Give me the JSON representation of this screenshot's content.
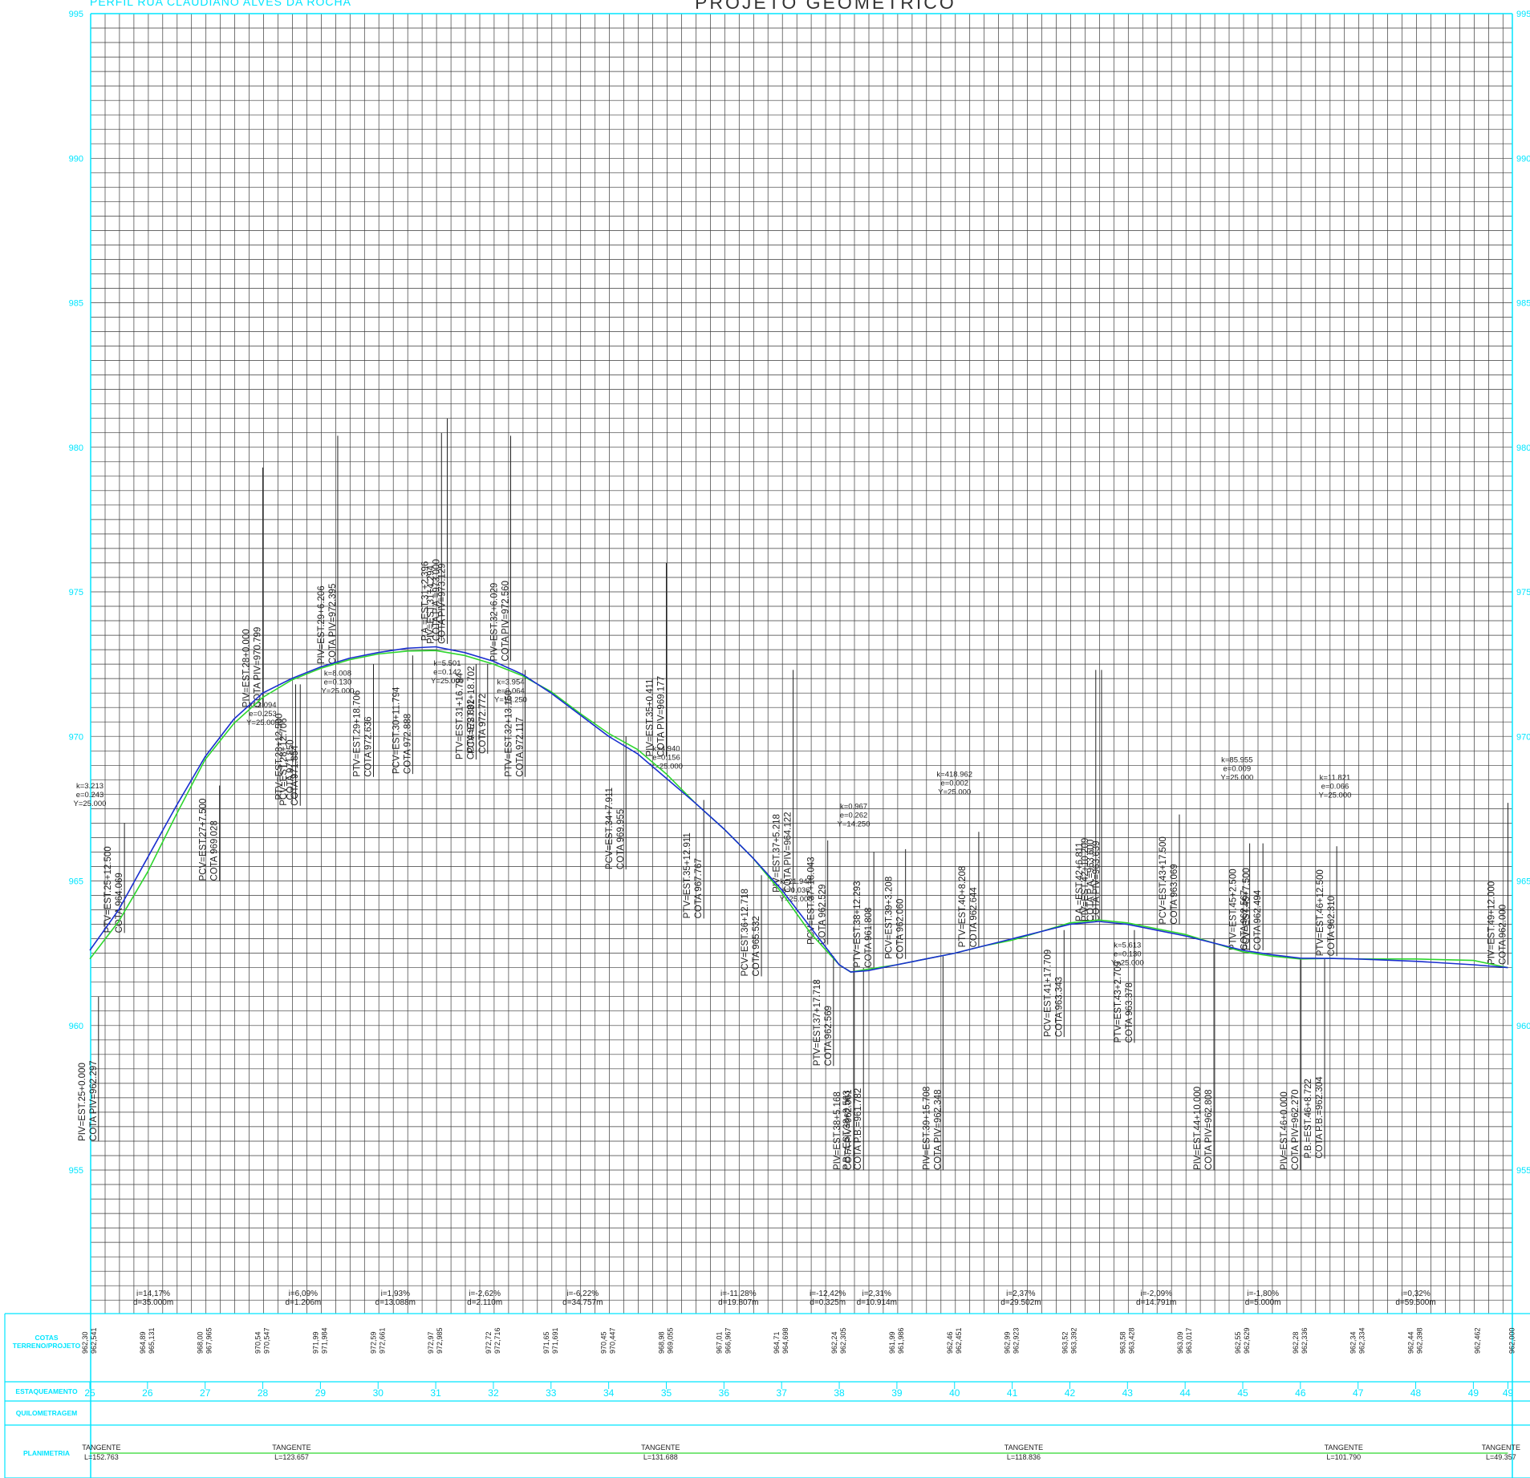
{
  "header": {
    "profile_name": "PERFIL RUA CLAUDIANO ALVES DA ROCHA",
    "project_title": "PROJETO GEOMETRICO"
  },
  "colors": {
    "cyan": "#00e5ff",
    "grid": "#3a3a3a",
    "project_line": "#1a2fd0",
    "terrain_line": "#2ed62e",
    "annotation": "#222222"
  },
  "chart_data": {
    "type": "line",
    "title": "PROJETO GEOMETRICO",
    "xlim": [
      25,
      49.65
    ],
    "ylim": [
      950,
      995
    ],
    "elevation_ticks": [
      "955",
      "960",
      "965",
      "970",
      "975",
      "980",
      "985",
      "990",
      "995"
    ],
    "grid": true,
    "series": [
      {
        "name": "projeto",
        "stations": [
          25,
          25.5,
          26,
          26.5,
          27,
          27.5,
          28,
          28.5,
          29,
          29.5,
          30,
          30.5,
          31,
          31.5,
          32,
          32.5,
          33,
          33.5,
          34,
          34.5,
          35,
          35.5,
          36,
          36.5,
          37,
          37.5,
          38,
          38.2,
          38.5,
          39,
          39.5,
          40,
          40.5,
          41,
          41.5,
          42,
          42.5,
          43,
          43.5,
          44,
          44.5,
          45,
          45.5,
          46,
          46.5,
          47,
          48,
          49,
          49.6
        ],
        "elevations": [
          962.6,
          964.0,
          965.8,
          967.6,
          969.3,
          970.6,
          971.5,
          972.0,
          972.4,
          972.7,
          972.9,
          973.05,
          973.1,
          972.9,
          972.6,
          972.15,
          971.5,
          970.75,
          970.0,
          969.4,
          968.55,
          967.7,
          966.8,
          965.8,
          964.7,
          963.4,
          962.1,
          961.85,
          961.9,
          962.1,
          962.3,
          962.5,
          962.75,
          963.0,
          963.25,
          963.5,
          963.6,
          963.5,
          963.3,
          963.1,
          962.85,
          962.6,
          962.45,
          962.33,
          962.32,
          962.3,
          962.22,
          962.1,
          962.0
        ]
      },
      {
        "name": "terreno",
        "stations": [
          25,
          25.5,
          26,
          26.5,
          27,
          27.5,
          28,
          28.5,
          29,
          29.5,
          30,
          30.5,
          31,
          31.5,
          32,
          32.5,
          33,
          33.5,
          34,
          34.5,
          35,
          35.5,
          36,
          36.5,
          37,
          37.5,
          38,
          38.2,
          38.5,
          39,
          39.5,
          40,
          40.5,
          41,
          41.5,
          42,
          42.5,
          43,
          43.5,
          44,
          44.5,
          45,
          45.5,
          46,
          46.5,
          47,
          48,
          49,
          49.6
        ],
        "elevations": [
          962.3,
          963.6,
          965.3,
          967.3,
          969.2,
          970.45,
          971.35,
          971.95,
          972.35,
          972.65,
          972.85,
          972.95,
          972.97,
          972.8,
          972.5,
          972.1,
          971.55,
          970.8,
          970.1,
          969.55,
          968.7,
          967.7,
          966.8,
          965.8,
          964.6,
          963.2,
          962.1,
          961.85,
          961.95,
          962.1,
          962.3,
          962.5,
          962.75,
          962.95,
          963.25,
          963.55,
          963.65,
          963.55,
          963.35,
          963.15,
          962.85,
          962.55,
          962.4,
          962.3,
          962.32,
          962.3,
          962.3,
          962.25,
          962.0
        ]
      }
    ],
    "vertical_labels": [
      {
        "station": 25.15,
        "top": 961.0,
        "bottom": 956.0,
        "lines": [
          "PIV=EST.25+0.000",
          "COTA PIV=962.297"
        ]
      },
      {
        "station": 25.6,
        "top": 967.0,
        "bottom": 963.2,
        "lines": [
          "PTV=EST.25+12.500",
          "COTA 964.069"
        ]
      },
      {
        "station": 27.25,
        "top": 968.3,
        "bottom": 965.0,
        "lines": [
          "PCV=EST.27+7.500",
          "COTA 969.028"
        ]
      },
      {
        "station": 28.0,
        "top": 979.3,
        "bottom": 971.0,
        "lines": [
          "PIV=EST.28+0.000",
          "COTA PIV=970.799"
        ]
      },
      {
        "station": 28.57,
        "top": 971.8,
        "bottom": 967.8,
        "lines": [
          "PTV=EST.28+12.500",
          "COTA 971.850"
        ]
      },
      {
        "station": 28.65,
        "top": 971.8,
        "bottom": 967.6,
        "lines": [
          "PCV=EST.28+12.706",
          "COTA 971.854"
        ]
      },
      {
        "station": 29.3,
        "top": 980.4,
        "bottom": 972.5,
        "lines": [
          "PIV=EST.29+6.206",
          "COTA PIV=972.395"
        ]
      },
      {
        "station": 29.92,
        "top": 972.5,
        "bottom": 968.6,
        "lines": [
          "PTV=EST.29+18.706",
          "COTA 972.636"
        ]
      },
      {
        "station": 30.6,
        "top": 972.8,
        "bottom": 968.7,
        "lines": [
          "PCV=EST.30+11.794",
          "COTA 972.888"
        ]
      },
      {
        "station": 31.1,
        "top": 980.5,
        "bottom": 973.3,
        "lines": [
          "P.A.=EST.31+2.396",
          "COTA P.A.=973.000"
        ]
      },
      {
        "station": 31.2,
        "top": 981.0,
        "bottom": 973.2,
        "lines": [
          "PIV=EST.31+4.294",
          "COTA PIV=973.129"
        ]
      },
      {
        "station": 31.7,
        "top": 972.5,
        "bottom": 969.2,
        "lines": [
          "PTV=EST.31+16.794",
          "COTA 972.802"
        ]
      },
      {
        "station": 31.9,
        "top": 972.5,
        "bottom": 969.4,
        "lines": [
          "PCV=EST.31+18.702",
          "COTA 972.772"
        ]
      },
      {
        "station": 32.3,
        "top": 980.4,
        "bottom": 972.6,
        "lines": [
          "PIV=EST.32+6.029",
          "COTA PIV=972.560"
        ]
      },
      {
        "station": 32.55,
        "top": 972.3,
        "bottom": 968.6,
        "lines": [
          "PTV=EST.32+13.150",
          "COTA 972.117"
        ]
      },
      {
        "station": 34.3,
        "top": 970.0,
        "bottom": 965.4,
        "lines": [
          "PCV=EST.34+7.911",
          "COTA 969.955"
        ]
      },
      {
        "station": 35.0,
        "top": 976.0,
        "bottom": 969.3,
        "lines": [
          "PIV=EST.35+0.411",
          "COTA PIV=969.177"
        ]
      },
      {
        "station": 35.65,
        "top": 967.8,
        "bottom": 963.7,
        "lines": [
          "PTV=EST.35+12.911",
          "COTA 967.767"
        ]
      },
      {
        "station": 36.65,
        "top": 965.2,
        "bottom": 961.7,
        "lines": [
          "PCV=EST.36+12.718",
          "COTA 965.532"
        ]
      },
      {
        "station": 37.2,
        "top": 972.3,
        "bottom": 964.6,
        "lines": [
          "PIV=EST.37+5.218",
          "COTA PIV=964.122"
        ]
      },
      {
        "station": 37.8,
        "top": 966.4,
        "bottom": 962.8,
        "lines": [
          "PCV=EST.37+18.043",
          "COTA 962.529"
        ]
      },
      {
        "station": 37.9,
        "top": 962.4,
        "bottom": 958.6,
        "lines": [
          "PTV=EST.37+17.718",
          "COTA 962.569"
        ]
      },
      {
        "station": 38.25,
        "top": 962.0,
        "bottom": 955.0,
        "lines": [
          "PIV=EST.38+5.168",
          "COTA PIV=962.061"
        ]
      },
      {
        "station": 38.42,
        "top": 962.0,
        "bottom": 955.0,
        "lines": [
          "P.B.=EST.38+8.563",
          "COTA P.B.=961.782"
        ]
      },
      {
        "station": 38.6,
        "top": 966.0,
        "bottom": 962.0,
        "lines": [
          "PTV=EST.38+12.293",
          "COTA 961.808"
        ]
      },
      {
        "station": 39.15,
        "top": 966.1,
        "bottom": 962.3,
        "lines": [
          "PCV=EST.39+3.208",
          "COTA 962.060"
        ]
      },
      {
        "station": 39.8,
        "top": 962.4,
        "bottom": 955.0,
        "lines": [
          "PIV=EST.39+15.708",
          "COTA PIV=962.348"
        ]
      },
      {
        "station": 40.42,
        "top": 966.7,
        "bottom": 962.7,
        "lines": [
          "PTV=EST.40+8.208",
          "COTA 962.644"
        ]
      },
      {
        "station": 41.9,
        "top": 963.3,
        "bottom": 959.6,
        "lines": [
          "PCV=EST.41+17.709",
          "COTA 963.343"
        ]
      },
      {
        "station": 42.45,
        "top": 972.3,
        "bottom": 963.6,
        "lines": [
          "P.A.=EST.42+6.811",
          "COTA P.A.=963.600"
        ]
      },
      {
        "station": 42.55,
        "top": 972.3,
        "bottom": 963.6,
        "lines": [
          "PIV=EST.42+10.209",
          "COTA PIV=963.639"
        ]
      },
      {
        "station": 43.12,
        "top": 963.3,
        "bottom": 959.4,
        "lines": [
          "PTV=EST.43+2.709",
          "COTA 963.378"
        ]
      },
      {
        "station": 43.9,
        "top": 967.3,
        "bottom": 963.5,
        "lines": [
          "PCV=EST.43+17.500",
          "COTA 963.069"
        ]
      },
      {
        "station": 44.5,
        "top": 963.0,
        "bottom": 955.0,
        "lines": [
          "PIV=EST.44+10.000",
          "COTA PIV=962.808"
        ]
      },
      {
        "station": 45.12,
        "top": 966.3,
        "bottom": 962.6,
        "lines": [
          "PTV=EST.45+2.500",
          "COTA 962.567"
        ]
      },
      {
        "station": 45.35,
        "top": 966.3,
        "bottom": 962.6,
        "lines": [
          "PCV=EST.45+7.500",
          "COTA 962.494"
        ]
      },
      {
        "station": 46.0,
        "top": 962.3,
        "bottom": 955.0,
        "lines": [
          "PIV=EST.46+0.000",
          "COTA PIV=962.270"
        ]
      },
      {
        "station": 46.42,
        "top": 962.3,
        "bottom": 955.4,
        "lines": [
          "P.B.=EST.46+8.722",
          "COTA P.B.=962.304"
        ]
      },
      {
        "station": 46.63,
        "top": 966.2,
        "bottom": 962.4,
        "lines": [
          "PTV=EST.46+12.500",
          "COTA 962.310"
        ]
      },
      {
        "station": 49.6,
        "top": 967.7,
        "bottom": 962.1,
        "lines": [
          "PIV=EST.49+12.000",
          "COTA 962.000"
        ]
      }
    ],
    "curve_params": [
      {
        "station": 25.0,
        "elevation": 968.2,
        "lines": [
          "k=3.213",
          "e=0.243",
          "Y=25.000"
        ]
      },
      {
        "station": 28.0,
        "elevation": 971.0,
        "lines": [
          "k=3.094",
          "e=0.253",
          "Y=25.000"
        ]
      },
      {
        "station": 29.3,
        "elevation": 972.1,
        "lines": [
          "k=8.008",
          "e=0.130",
          "Y=25.000"
        ]
      },
      {
        "station": 31.2,
        "elevation": 972.45,
        "lines": [
          "k=5.501",
          "e=0.142",
          "Y=25.000"
        ]
      },
      {
        "station": 32.3,
        "elevation": 971.8,
        "lines": [
          "k=3.954",
          "e=0.064",
          "Y=14.250"
        ]
      },
      {
        "station": 35.0,
        "elevation": 969.5,
        "lines": [
          "k=4.940",
          "e=0.156",
          "Y=25.000"
        ]
      },
      {
        "station": 37.25,
        "elevation": 964.9,
        "lines": [
          "k=21.944",
          "e=0.036",
          "Y=25.000"
        ]
      },
      {
        "station": 38.25,
        "elevation": 967.5,
        "lines": [
          "k=0.967",
          "e=0.262",
          "Y=14.250"
        ]
      },
      {
        "station": 40.0,
        "elevation": 968.6,
        "lines": [
          "k=418.962",
          "e=0.002",
          "Y=25.000"
        ]
      },
      {
        "station": 43.0,
        "elevation": 962.7,
        "lines": [
          "k=5.613",
          "e=0.130",
          "Y=25.000"
        ]
      },
      {
        "station": 44.9,
        "elevation": 969.1,
        "lines": [
          "k=85.955",
          "e=0.009",
          "Y=25.000"
        ]
      },
      {
        "station": 46.6,
        "elevation": 968.5,
        "lines": [
          "k=11.821",
          "e=0.066",
          "Y=25.000"
        ]
      }
    ],
    "slopes": [
      {
        "station": 26.1,
        "i": "i=14,17%",
        "d": "d=35.000m"
      },
      {
        "station": 28.7,
        "i": "i=6,09%",
        "d": "d=1.206m"
      },
      {
        "station": 30.3,
        "i": "i=1,93%",
        "d": "d=13.088m"
      },
      {
        "station": 31.85,
        "i": "i=-2,62%",
        "d": "d=2.110m"
      },
      {
        "station": 33.55,
        "i": "i=-6,22%",
        "d": "d=34.757m"
      },
      {
        "station": 36.25,
        "i": "i=-11,28%",
        "d": "d=19.807m"
      },
      {
        "station": 37.8,
        "i": "i=-12,42%",
        "d": "d=0.325m"
      },
      {
        "station": 38.65,
        "i": "i=2,31%",
        "d": "d=10.914m"
      },
      {
        "station": 41.15,
        "i": "i=2,37%",
        "d": "d=29.502m"
      },
      {
        "station": 43.5,
        "i": "i=-2,09%",
        "d": "d=14.791m"
      },
      {
        "station": 45.35,
        "i": "i=-1,80%",
        "d": "d=5.000m"
      },
      {
        "station": 48.0,
        "i": "i=0,32%",
        "d": "d=59.500m"
      }
    ]
  },
  "bottom_table": {
    "cotas_label": "COTAS\nTERRENO/PROJETO",
    "estaqueamento_label": "ESTAQUEAMENTO",
    "quilometragem_label": "QUILOMETRAGEM",
    "planimetria_label": "PLANIMETRIA",
    "cotas": [
      {
        "station": 25,
        "terreno": "962,30",
        "projeto": "962,541"
      },
      {
        "station": 26,
        "terreno": "964,89",
        "projeto": "965,131"
      },
      {
        "station": 27,
        "terreno": "968,00",
        "projeto": "967,965"
      },
      {
        "station": 28,
        "terreno": "970,54",
        "projeto": "970,547"
      },
      {
        "station": 29,
        "terreno": "971,99",
        "projeto": "971,984"
      },
      {
        "station": 30,
        "terreno": "972,59",
        "projeto": "972,661"
      },
      {
        "station": 31,
        "terreno": "972,97",
        "projeto": "972,985"
      },
      {
        "station": 32,
        "terreno": "972,72",
        "projeto": "972,716"
      },
      {
        "station": 33,
        "terreno": "971,65",
        "projeto": "971,691"
      },
      {
        "station": 34,
        "terreno": "970,45",
        "projeto": "970,447"
      },
      {
        "station": 35,
        "terreno": "968,98",
        "projeto": "969,055"
      },
      {
        "station": 36,
        "terreno": "967,01",
        "projeto": "966,967"
      },
      {
        "station": 37,
        "terreno": "964,71",
        "projeto": "964,698"
      },
      {
        "station": 38,
        "terreno": "962,24",
        "projeto": "962,305"
      },
      {
        "station": 39,
        "terreno": "961,99",
        "projeto": "961,986"
      },
      {
        "station": 40,
        "terreno": "962,46",
        "projeto": "962,451"
      },
      {
        "station": 41,
        "terreno": "962,99",
        "projeto": "962,923"
      },
      {
        "station": 42,
        "terreno": "963,52",
        "projeto": "963,392"
      },
      {
        "station": 43,
        "terreno": "963,58",
        "projeto": "963,428"
      },
      {
        "station": 44,
        "terreno": "963,09",
        "projeto": "963,017"
      },
      {
        "station": 45,
        "terreno": "962,55",
        "projeto": "962,629"
      },
      {
        "station": 46,
        "terreno": "962,28",
        "projeto": "962,336"
      },
      {
        "station": 47,
        "terreno": "962,34",
        "projeto": "962,334"
      },
      {
        "station": 48,
        "terreno": "962,44",
        "projeto": "962,398"
      },
      {
        "station": 49,
        "terreno": "",
        "projeto": "962,462"
      },
      {
        "station": 49.6,
        "terreno": "",
        "projeto": "962,000"
      }
    ],
    "stations": [
      "25",
      "26",
      "27",
      "28",
      "29",
      "30",
      "31",
      "32",
      "33",
      "34",
      "35",
      "36",
      "37",
      "38",
      "39",
      "40",
      "41",
      "42",
      "43",
      "44",
      "45",
      "46",
      "47",
      "48",
      "49",
      "49"
    ],
    "planimetria": [
      {
        "station": 25.2,
        "type": "TANGENTE",
        "length": "L=152.763"
      },
      {
        "station": 28.5,
        "type": "TANGENTE",
        "length": "L=123.657"
      },
      {
        "station": 34.9,
        "type": "TANGENTE",
        "length": "L=131.688"
      },
      {
        "station": 41.2,
        "type": "TANGENTE",
        "length": "L=118.836"
      },
      {
        "station": 46.75,
        "type": "TANGENTE",
        "length": "L=101.790"
      },
      {
        "station": 49.48,
        "type": "TANGENTE",
        "length": "L=49.357"
      }
    ]
  }
}
